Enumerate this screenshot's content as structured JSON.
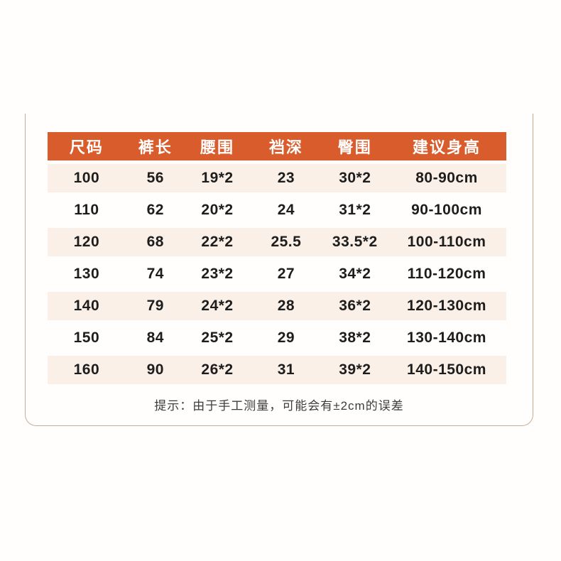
{
  "table": {
    "headers": [
      "尺码",
      "裤长",
      "腰围",
      "裆深",
      "臀围",
      "建议身高"
    ],
    "rows": [
      [
        "100",
        "56",
        "19*2",
        "23",
        "30*2",
        "80-90cm"
      ],
      [
        "110",
        "62",
        "20*2",
        "24",
        "31*2",
        "90-100cm"
      ],
      [
        "120",
        "68",
        "22*2",
        "25.5",
        "33.5*2",
        "100-110cm"
      ],
      [
        "130",
        "74",
        "23*2",
        "27",
        "34*2",
        "110-120cm"
      ],
      [
        "140",
        "79",
        "24*2",
        "28",
        "36*2",
        "120-130cm"
      ],
      [
        "150",
        "84",
        "25*2",
        "29",
        "38*2",
        "130-140cm"
      ],
      [
        "160",
        "90",
        "26*2",
        "31",
        "39*2",
        "140-150cm"
      ]
    ]
  },
  "note": "提示：由于手工测量，可能会有±2cm的误差",
  "colors": {
    "header_bg": "#d95c2c",
    "header_text": "#ffffff",
    "row_alt_bg": "#faf0e7",
    "panel_border": "#c7ab92",
    "cell_text": "#1d1d1d",
    "note_text": "#3c3c3c",
    "page_bg": "#fffefd"
  }
}
